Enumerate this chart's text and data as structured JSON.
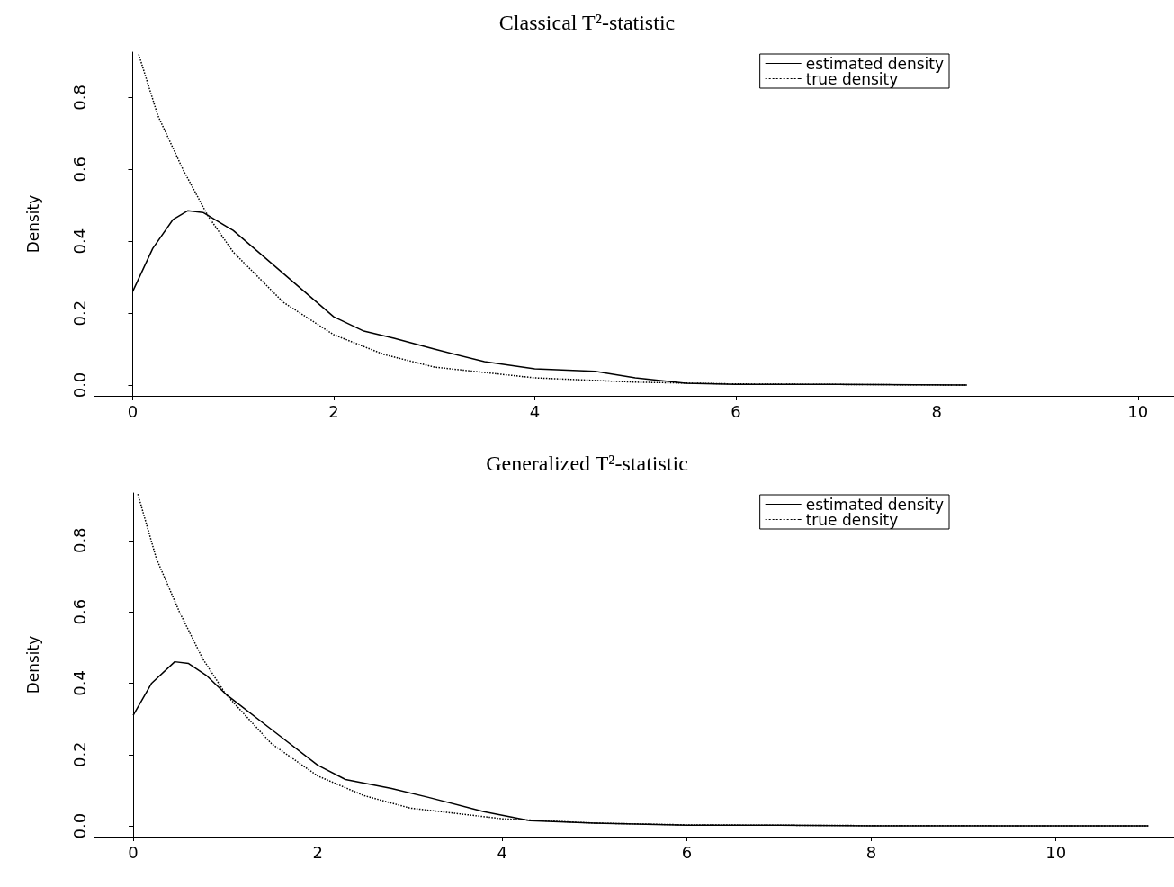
{
  "chart_data": [
    {
      "type": "line",
      "title": "Classical T²-statistic",
      "ylabel": "Density",
      "xlim": [
        -0.38,
        10.36
      ],
      "xticks": [
        0,
        2,
        4,
        6,
        8,
        10
      ],
      "ylim": [
        -0.03,
        0.926
      ],
      "yticks": [
        {
          "value": 0,
          "label": "0.0"
        },
        0.2,
        0.4,
        0.6,
        0.8
      ],
      "legend": "top right",
      "marker": "none",
      "series": [
        {
          "name": "estimated density",
          "color": "#000000",
          "line_style": "solid",
          "x": [
            0,
            0.2,
            0.4,
            0.55,
            0.7,
            1,
            1.5,
            2,
            2.3,
            2.6,
            3,
            3.5,
            4,
            4.6,
            5,
            5.5,
            6,
            7,
            8.3
          ],
          "values": [
            0.26,
            0.38,
            0.46,
            0.485,
            0.48,
            0.43,
            0.31,
            0.19,
            0.15,
            0.13,
            0.1,
            0.065,
            0.045,
            0.038,
            0.02,
            0.005,
            0.002,
            0.002,
            0
          ]
        },
        {
          "name": "true density",
          "color": "#000000",
          "line_style": "dotted",
          "x": [
            0.06,
            0.25,
            0.5,
            0.75,
            1,
            1.5,
            2,
            2.5,
            3,
            4,
            5,
            6,
            8.3
          ],
          "values": [
            0.92,
            0.75,
            0.6,
            0.47,
            0.37,
            0.23,
            0.14,
            0.085,
            0.05,
            0.02,
            0.008,
            0.003,
            0
          ]
        }
      ]
    },
    {
      "type": "line",
      "title": "Generalized T²-statistic",
      "ylabel": "Density",
      "xlim": [
        -0.42,
        11.28
      ],
      "xticks": [
        0,
        2,
        4,
        6,
        8,
        10
      ],
      "ylim": [
        -0.03,
        0.933
      ],
      "yticks": [
        {
          "value": 0,
          "label": "0.0"
        },
        0.2,
        0.4,
        0.6,
        0.8
      ],
      "legend": "top right",
      "marker": "none",
      "series": [
        {
          "name": "estimated density",
          "color": "#000000",
          "line_style": "solid",
          "x": [
            0,
            0.2,
            0.45,
            0.6,
            0.8,
            1,
            1.5,
            2,
            2.3,
            2.8,
            3.2,
            3.8,
            4.3,
            5,
            6,
            7,
            8,
            11
          ],
          "values": [
            0.31,
            0.4,
            0.46,
            0.455,
            0.42,
            0.37,
            0.27,
            0.17,
            0.13,
            0.105,
            0.08,
            0.04,
            0.015,
            0.008,
            0.002,
            0.002,
            0,
            0
          ]
        },
        {
          "name": "true density",
          "color": "#000000",
          "line_style": "dotted",
          "x": [
            0.05,
            0.25,
            0.5,
            0.75,
            1,
            1.5,
            2,
            2.5,
            3,
            4,
            5,
            6,
            8,
            11
          ],
          "values": [
            0.93,
            0.75,
            0.6,
            0.47,
            0.37,
            0.23,
            0.14,
            0.085,
            0.05,
            0.02,
            0.008,
            0.003,
            0.001,
            0
          ]
        }
      ]
    }
  ]
}
